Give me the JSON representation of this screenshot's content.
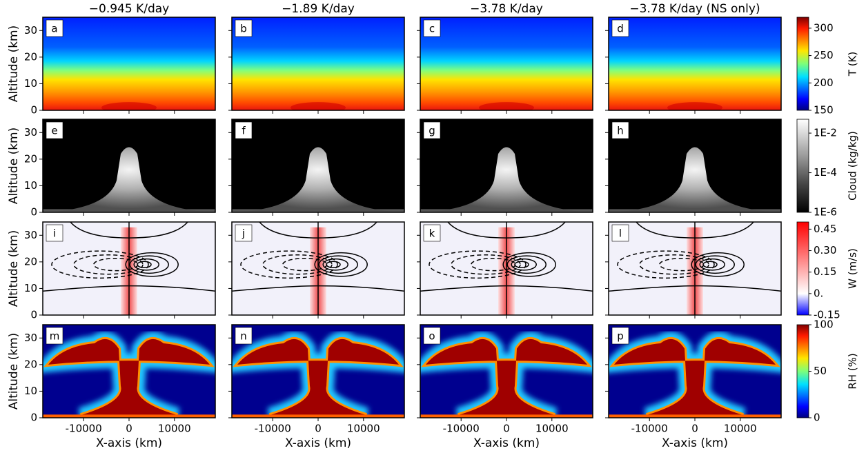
{
  "chart_data": {
    "type": "contour",
    "columns": [
      "−0.945 K/day",
      "−1.89 K/day",
      "−3.78 K/day",
      "−3.78 K/day (NS only)"
    ],
    "xlabel": "X-axis (km)",
    "ylabel": "Altitude (km)",
    "xlim": [
      -19000,
      19000
    ],
    "ylim": [
      0,
      35
    ],
    "xticks": [
      -10000,
      0,
      10000
    ],
    "yticks": [
      0,
      10,
      20,
      30
    ],
    "rows": [
      {
        "panels": [
          "a",
          "b",
          "c",
          "d"
        ],
        "colorbar": {
          "label": "T (K)",
          "lim": [
            150,
            320
          ],
          "ticks": [
            150,
            200,
            250,
            300
          ]
        }
      },
      {
        "panels": [
          "e",
          "f",
          "g",
          "h"
        ],
        "colorbar": {
          "label": "Cloud (kg/kg)",
          "log": true,
          "lim": [
            1e-06,
            0.05
          ],
          "ticks": [
            {
              "value": 1e-06,
              "label": "1E-6"
            },
            {
              "value": 0.0001,
              "label": "1E-4"
            },
            {
              "value": 0.01,
              "label": "1E-2"
            }
          ]
        }
      },
      {
        "panels": [
          "i",
          "j",
          "k",
          "l"
        ],
        "colorbar": {
          "label": "W (m/s)",
          "lim": [
            -0.15,
            0.5
          ],
          "ticks": [
            -0.15,
            {
              "value": 0,
              "label": "0."
            },
            0.15,
            {
              "value": 0.3,
              "label": "0.30"
            },
            0.45
          ]
        }
      },
      {
        "panels": [
          "m",
          "n",
          "o",
          "p"
        ],
        "colorbar": {
          "label": "RH (%)",
          "lim": [
            0,
            100
          ],
          "ticks": [
            0,
            50,
            100
          ]
        }
      }
    ]
  }
}
